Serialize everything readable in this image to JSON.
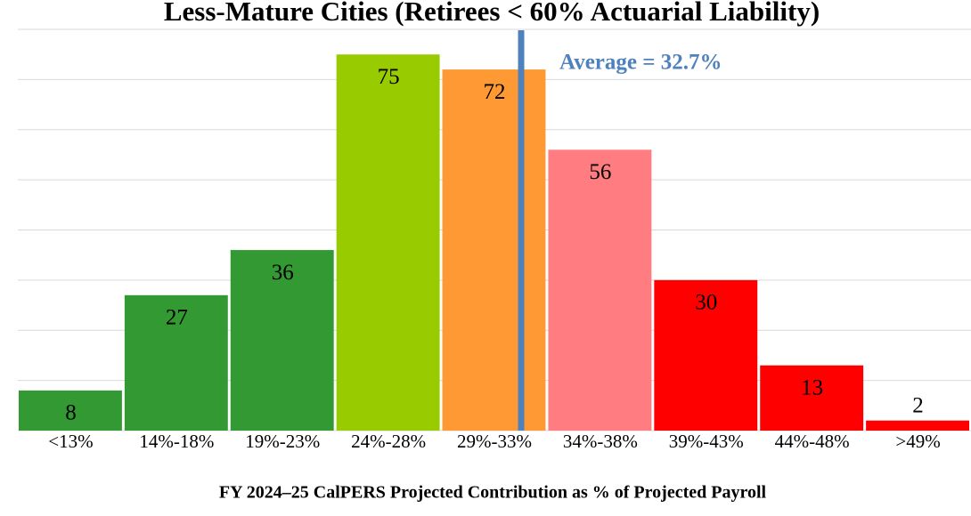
{
  "chart_data": {
    "type": "bar",
    "title": "Less-Mature Cities (Retirees < 60% Actuarial Liability)",
    "x_label": "FY 2024–25 CalPERS Projected Contribution as % of Projected Payroll",
    "categories": [
      "<13%",
      "14%-18%",
      "19%-23%",
      "24%-28%",
      "29%-33%",
      "34%-38%",
      "39%-43%",
      "44%-48%",
      ">49%"
    ],
    "values": [
      8,
      27,
      36,
      75,
      72,
      56,
      30,
      13,
      2
    ],
    "colors": [
      "#339933",
      "#339933",
      "#339933",
      "#99cc00",
      "#ff9933",
      "#ff7c80",
      "#ff0000",
      "#ff0000",
      "#ff0000"
    ],
    "ylim": [
      0,
      80
    ],
    "yticks": [
      0,
      10,
      20,
      30,
      40,
      50,
      60,
      70,
      80
    ],
    "grid": true,
    "annotation": "Average = 32.7%"
  }
}
